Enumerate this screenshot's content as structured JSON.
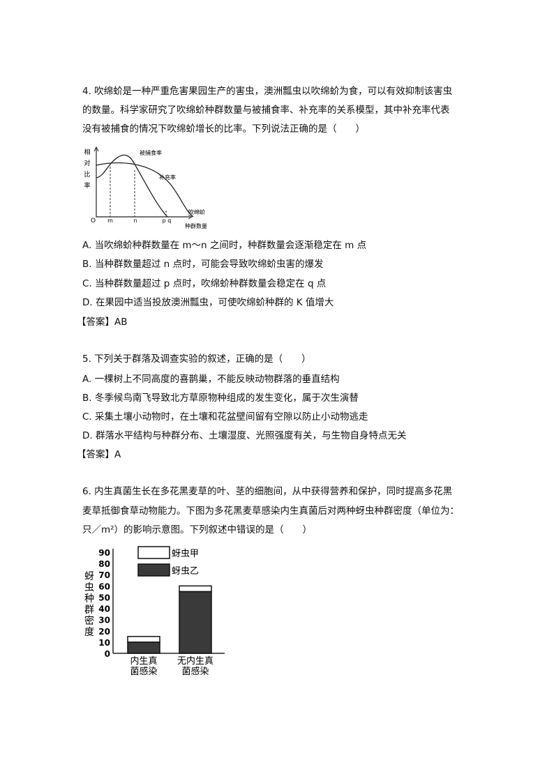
{
  "q4": {
    "lines": [
      "4. 吹绵蚧是一种严重危害果园生产的害虫，澳洲瓢虫以吹绵蚧为食，可以有效抑制该害虫",
      "的数量。科学家研究了吹绵蚧种群数量与被捕食率、补充率的关系模型，其中补充率代表",
      "没有被捕食的情况下吹绵蚧增长的比率。下列说法正确的是（　　）"
    ],
    "figure": {
      "ylabel": [
        "相",
        "对",
        "比",
        "率"
      ],
      "origin": "O",
      "ticks": [
        "m",
        "n",
        "p",
        "q"
      ],
      "xlabel": [
        "吹绵蚧",
        "种群数量"
      ],
      "curve1": "被捕食率",
      "curve2": "补充率"
    },
    "options": [
      "A. 当吹绵蚧种群数量在 m～n 之间时，种群数量会逐渐稳定在 m 点",
      "B. 当种群数量超过 n 点时，可能会导致吹绵蚧虫害的爆发",
      "C. 当种群数量超过 p 点时，吹绵蚧种群数量会稳定在 q 点",
      "D. 在果园中适当投放澳洲瓢虫，可使吹绵蚧种群的 K 值增大"
    ],
    "answer": "【答案】AB"
  },
  "q5": {
    "lines": [
      "5. 下列关于群落及调查实验的叙述，正确的是（　　）"
    ],
    "options": [
      "A. 一棵树上不同高度的喜鹊巢，不能反映动物群落的垂直结构",
      "B. 冬季候鸟南飞导致北方草原物种组成的发生变化，属于次生演替",
      "C. 采集土壤小动物时，在土壤和花盆壁间留有空隙以防止小动物逃走",
      "D. 群落水平结构与种群分布、土壤湿度、光照强度有关，与生物自身特点无关"
    ],
    "answer": "【答案】A"
  },
  "q6": {
    "lines": [
      "6. 内生真菌生长在多花黑麦草的叶、茎的细胞间，从中获得营养和保护，同时提高多花黑",
      "麦草抵御食草动物能力。下图为多花黑麦草感染内生真菌后对两种蚜虫种群密度（单位为：",
      "只／m²）的影响示意图。下列叙述中错误的是（　　）"
    ]
  },
  "chart_data": {
    "type": "bar",
    "stacked": true,
    "categories": [
      [
        "内生真",
        "菌感染"
      ],
      [
        "无内生真",
        "菌感染"
      ]
    ],
    "series": [
      {
        "name": "蚜虫乙",
        "values": [
          10,
          55
        ],
        "color": "#3a3a3a"
      },
      {
        "name": "蚜虫甲",
        "values": [
          5,
          5
        ],
        "color": "#ffffff"
      }
    ],
    "ylabel": [
      "蚜",
      "虫",
      "种",
      "群",
      "密",
      "度"
    ],
    "yticks": [
      0,
      10,
      20,
      30,
      40,
      50,
      60,
      70,
      80,
      90
    ],
    "ylim": [
      0,
      90
    ],
    "legend": "top"
  }
}
